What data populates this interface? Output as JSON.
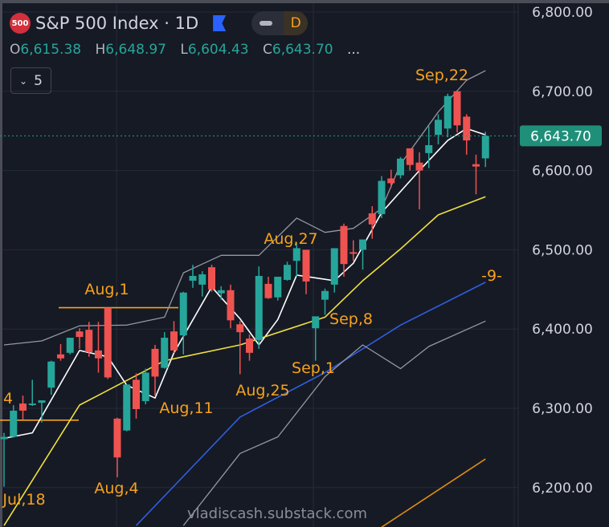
{
  "header": {
    "logo_text": "500",
    "title": "S&P 500 Index · 1D",
    "interval_badge": "D",
    "ohlc": {
      "o_label": "O",
      "open": "6,615.38",
      "h_label": "H",
      "high": "6,648.97",
      "l_label": "L",
      "low": "6,604.43",
      "c_label": "C",
      "close": "6,643.70",
      "more": "..."
    },
    "indicators_count": "5"
  },
  "watermark": "vladiscash.substack.com",
  "colors": {
    "background": "#161a25",
    "up": "#26a69a",
    "down": "#ef5350",
    "grid": "#252a36",
    "annotation": "#f7a21b",
    "ma_white": "#ffffff",
    "ma_yellow": "#f0e040",
    "ma_blue": "#2f5fe0",
    "band": "#9598a1",
    "ma_orange": "#e08a14",
    "last_price": "#1f8f7a"
  },
  "chart_data": {
    "type": "candlestick",
    "symbol": "S&P 500 Index",
    "interval": "1D",
    "ylim": [
      6150,
      6830
    ],
    "y_ticks": [
      "6,800.00",
      "6,700.00",
      "6,600.00",
      "6,500.00",
      "6,400.00",
      "6,300.00",
      "6,200.00"
    ],
    "y_tick_values": [
      6800,
      6700,
      6600,
      6500,
      6400,
      6300,
      6200
    ],
    "last_price": 6643.7,
    "last_price_label": "6,643.70",
    "grid": true,
    "candles": [
      [
        "Jul 16",
        6261,
        6269,
        6201,
        6264
      ],
      [
        "Jul 17",
        6264,
        6304,
        6263,
        6297
      ],
      [
        "Jul 18",
        6306,
        6316,
        6286,
        6297
      ],
      [
        "Jul 21",
        6304,
        6336,
        6303,
        6306
      ],
      [
        "Jul 22",
        6307,
        6310,
        6282,
        6310
      ],
      [
        "Jul 23",
        6326,
        6360,
        6317,
        6359
      ],
      [
        "Jul 24",
        6368,
        6381,
        6360,
        6363
      ],
      [
        "Jul 25",
        6370,
        6389,
        6368,
        6389
      ],
      [
        "Jul 28",
        6397,
        6401,
        6375,
        6390
      ],
      [
        "Jul 29",
        6399,
        6409,
        6365,
        6371
      ],
      [
        "Jul 30",
        6373,
        6409,
        6345,
        6363
      ],
      [
        "Jul 31",
        6427,
        6427,
        6337,
        6339
      ],
      [
        "Aug 1",
        6287,
        6288,
        6213,
        6238
      ],
      [
        "Aug 4",
        6272,
        6330,
        6271,
        6330
      ],
      [
        "Aug 5",
        6336,
        6344,
        6287,
        6299
      ],
      [
        "Aug 6",
        6309,
        6350,
        6305,
        6345
      ],
      [
        "Aug 7",
        6375,
        6380,
        6316,
        6340
      ],
      [
        "Aug 8",
        6351,
        6396,
        6350,
        6389
      ],
      [
        "Aug 11",
        6397,
        6410,
        6370,
        6373
      ],
      [
        "Aug 12",
        6392,
        6447,
        6368,
        6446
      ],
      [
        "Aug 13",
        6461,
        6481,
        6452,
        6467
      ],
      [
        "Aug 14",
        6456,
        6473,
        6441,
        6469
      ],
      [
        "Aug 15",
        6478,
        6481,
        6447,
        6450
      ],
      [
        "Aug 18",
        6445,
        6454,
        6437,
        6449
      ],
      [
        "Aug 19",
        6449,
        6456,
        6401,
        6411
      ],
      [
        "Aug 20",
        6406,
        6410,
        6343,
        6396
      ],
      [
        "Aug 21",
        6388,
        6393,
        6360,
        6370
      ],
      [
        "Aug 22",
        6386,
        6479,
        6375,
        6467
      ],
      [
        "Aug 25",
        6457,
        6466,
        6438,
        6439
      ],
      [
        "Aug 26",
        6440,
        6466,
        6436,
        6466
      ],
      [
        "Aug 27",
        6462,
        6485,
        6461,
        6481
      ],
      [
        "Aug 28",
        6486,
        6508,
        6466,
        6502
      ],
      [
        "Aug 29",
        6500,
        6500,
        6444,
        6460
      ],
      [
        "Sep 2",
        6401,
        6416,
        6360,
        6416
      ],
      [
        "Sep 3",
        6437,
        6451,
        6418,
        6448
      ],
      [
        "Sep 4",
        6456,
        6502,
        6446,
        6502
      ],
      [
        "Sep 5",
        6530,
        6533,
        6466,
        6482
      ],
      [
        "Sep 8",
        6497,
        6512,
        6486,
        6495
      ],
      [
        "Sep 9",
        6500,
        6513,
        6475,
        6513
      ],
      [
        "Sep 10",
        6546,
        6555,
        6514,
        6532
      ],
      [
        "Sep 11",
        6545,
        6593,
        6540,
        6587
      ],
      [
        "Sep 12",
        6590,
        6601,
        6578,
        6584
      ],
      [
        "Sep 15",
        6594,
        6617,
        6590,
        6615
      ],
      [
        "Sep 16",
        6628,
        6628,
        6600,
        6607
      ],
      [
        "Sep 17",
        6610,
        6623,
        6551,
        6600
      ],
      [
        "Sep 18",
        6622,
        6656,
        6603,
        6632
      ],
      [
        "Sep 19",
        6645,
        6671,
        6633,
        6664
      ],
      [
        "Sep 22",
        6653,
        6697,
        6642,
        6694
      ],
      [
        "Sep 23",
        6700,
        6700,
        6648,
        6657
      ],
      [
        "Sep 24",
        6668,
        6671,
        6620,
        6638
      ],
      [
        "Sep 25",
        6608,
        6620,
        6570,
        6605
      ],
      [
        "Sep 26",
        6615.38,
        6648.97,
        6604.43,
        6643.7
      ]
    ],
    "lines": [
      {
        "color": "ma_white",
        "points": [
          [
            "Jul 16",
            6262
          ],
          [
            "Jul 21",
            6269
          ],
          [
            "Jul 28",
            6373
          ],
          [
            "Jul 31",
            6365
          ],
          [
            "Aug 4",
            6329
          ],
          [
            "Aug 7",
            6313
          ],
          [
            "Aug 11",
            6370
          ],
          [
            "Aug 15",
            6453
          ],
          [
            "Aug 20",
            6413
          ],
          [
            "Aug 22",
            6380
          ],
          [
            "Aug 26",
            6412
          ],
          [
            "Aug 28",
            6468
          ],
          [
            "Sep 4",
            6461
          ],
          [
            "Sep 8",
            6483
          ],
          [
            "Sep 11",
            6547
          ],
          [
            "Sep 17",
            6600
          ],
          [
            "Sep 22",
            6638
          ],
          [
            "Sep 24",
            6653
          ],
          [
            "Sep 26",
            6645
          ]
        ]
      },
      {
        "color": "ma_yellow",
        "points": [
          [
            "Jul 16",
            6152
          ],
          [
            "Jul 28",
            6304
          ],
          [
            "Aug 8",
            6360
          ],
          [
            "Aug 20",
            6380
          ],
          [
            "Sep 3",
            6415
          ],
          [
            "Sep 9",
            6461
          ],
          [
            "Sep 15",
            6501
          ],
          [
            "Sep 19",
            6544
          ],
          [
            "Sep 26",
            6567
          ]
        ]
      },
      {
        "color": "ma_blue",
        "points": [
          [
            "Aug 5",
            6152
          ],
          [
            "Aug 20",
            6289
          ],
          [
            "Sep 3",
            6345
          ],
          [
            "Sep 15",
            6405
          ],
          [
            "Sep 26",
            6459
          ]
        ]
      },
      {
        "color": "band",
        "points": [
          [
            "Jul 16",
            6380
          ],
          [
            "Jul 22",
            6385
          ],
          [
            "Jul 28",
            6404
          ],
          [
            "Aug 4",
            6405
          ],
          [
            "Aug 8",
            6415
          ],
          [
            "Aug 12",
            6471
          ],
          [
            "Aug 18",
            6493
          ],
          [
            "Aug 22",
            6493
          ],
          [
            "Aug 28",
            6540
          ],
          [
            "Sep 3",
            6522
          ],
          [
            "Sep 8",
            6527
          ],
          [
            "Sep 11",
            6552
          ],
          [
            "Sep 15",
            6608
          ],
          [
            "Sep 19",
            6674
          ],
          [
            "Sep 24",
            6714
          ],
          [
            "Sep 26",
            6726
          ]
        ]
      },
      {
        "color": "band",
        "points": [
          [
            "Aug 12",
            6152
          ],
          [
            "Aug 20",
            6243
          ],
          [
            "Aug 26",
            6264
          ],
          [
            "Sep 3",
            6340
          ],
          [
            "Sep 9",
            6380
          ],
          [
            "Sep 15",
            6350
          ],
          [
            "Sep 18",
            6378
          ],
          [
            "Sep 26",
            6410
          ]
        ]
      },
      {
        "color": "ma_orange",
        "points": [
          [
            "Sep 11",
            6150
          ],
          [
            "Sep 26",
            6236
          ]
        ]
      }
    ],
    "levels": [
      6427,
      6285
    ],
    "annotations": [
      "Sep,22",
      "Aug,27",
      "Aug,1",
      "-9-",
      "Sep,8",
      "Sep,1",
      "Aug,25",
      "Aug,11",
      "4",
      "Aug,4",
      "Jul,18"
    ]
  }
}
